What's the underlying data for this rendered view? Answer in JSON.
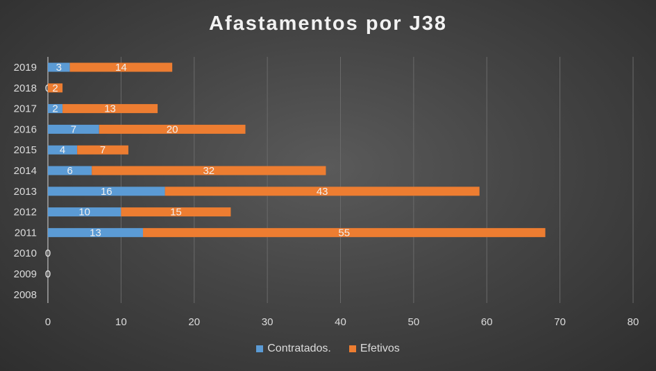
{
  "chart_data": {
    "type": "bar",
    "orientation": "horizontal",
    "stacked": true,
    "title": "Afastamentos por J38",
    "categories": [
      "2019",
      "2018",
      "2017",
      "2016",
      "2015",
      "2014",
      "2013",
      "2012",
      "2011",
      "2010",
      "2009",
      "2008"
    ],
    "series": [
      {
        "name": "Contratados.",
        "color": "#5b9bd5",
        "values": [
          3,
          0,
          2,
          7,
          4,
          6,
          16,
          10,
          13,
          0,
          0,
          null
        ]
      },
      {
        "name": "Efetivos",
        "color": "#ed7d31",
        "values": [
          14,
          2,
          13,
          20,
          7,
          32,
          43,
          15,
          55,
          null,
          null,
          null
        ]
      }
    ],
    "xlim": [
      0,
      80
    ],
    "x_ticks": [
      0,
      10,
      20,
      30,
      40,
      50,
      60,
      70,
      80
    ],
    "grid": true,
    "legend_position": "bottom"
  }
}
